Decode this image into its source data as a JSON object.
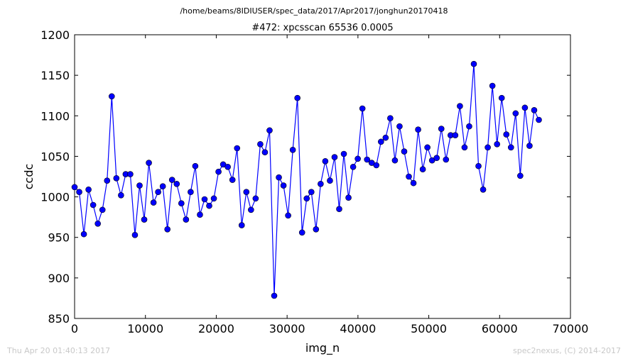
{
  "suptitle": "/home/beams/8IDIUSER/spec_data/2017/Apr2017/jonghun20170418",
  "footer": {
    "left": "Thu Apr 20 01:40:13 2017",
    "right": "spec2nexus, (C) 2014-2017"
  },
  "colors": {
    "series": "#0000ff",
    "axes": "#000000",
    "footer": "#c8c8c8"
  },
  "chart_data": {
    "type": "line",
    "title": "#472: xpcsscan 65536 0.0005",
    "xlabel": "img_n",
    "ylabel": "ccdc",
    "xlim": [
      0,
      70000
    ],
    "ylim": [
      850,
      1200
    ],
    "xticks": [
      0,
      10000,
      20000,
      30000,
      40000,
      50000,
      60000,
      70000
    ],
    "yticks": [
      850,
      900,
      950,
      1000,
      1050,
      1100,
      1150,
      1200
    ],
    "grid": false,
    "marker": "circle",
    "series": [
      {
        "x": [
          0,
          655,
          1311,
          1966,
          2621,
          3277,
          3932,
          4588,
          5243,
          5898,
          6554,
          7209,
          7864,
          8520,
          9175,
          9830,
          10486,
          11141,
          11796,
          12452,
          13107,
          13763,
          14418,
          15073,
          15729,
          16384,
          17039,
          17695,
          18350,
          19005,
          19661,
          20316,
          20972,
          21627,
          22282,
          22938,
          23593,
          24248,
          24904,
          25559,
          26214,
          26870,
          27525,
          28180,
          28836,
          29491,
          30147,
          30802,
          31457,
          32113,
          32768,
          33423,
          34079,
          34734,
          35389,
          36045,
          36700,
          37356,
          38011,
          38666,
          39322,
          39977,
          40632,
          41288,
          41943,
          42598,
          43254,
          43909,
          44564,
          45220,
          45875,
          46531,
          47186,
          47841,
          48497,
          49152,
          49807,
          50463,
          51118,
          51773,
          52429,
          53084,
          53740,
          54395,
          55050,
          55706,
          56361,
          57016,
          57672,
          58327,
          58982,
          59638,
          60293,
          60948,
          61604,
          62259,
          62915,
          63570,
          64225,
          64881,
          65536
        ],
        "values": [
          1012,
          1006,
          954,
          1009,
          990,
          967,
          984,
          1020,
          1124,
          1023,
          1002,
          1028,
          1028,
          953,
          1014,
          972,
          1042,
          993,
          1006,
          1013,
          960,
          1021,
          1016,
          992,
          972,
          1006,
          1038,
          978,
          997,
          989,
          998,
          1031,
          1040,
          1037,
          1021,
          1060,
          965,
          1006,
          984,
          998,
          1065,
          1055,
          1082,
          878,
          1024,
          1014,
          977,
          1058,
          1122,
          956,
          998,
          1006,
          960,
          1016,
          1044,
          1020,
          1049,
          985,
          1053,
          999,
          1037,
          1047,
          1109,
          1046,
          1042,
          1039,
          1068,
          1073,
          1097,
          1045,
          1087,
          1056,
          1025,
          1017,
          1083,
          1034,
          1061,
          1045,
          1048,
          1084,
          1046,
          1076,
          1076,
          1112,
          1061,
          1087,
          1164,
          1038,
          1009,
          1061,
          1137,
          1065,
          1122,
          1077,
          1061,
          1103,
          1026,
          1110,
          1063,
          1107,
          1095
        ]
      }
    ]
  }
}
